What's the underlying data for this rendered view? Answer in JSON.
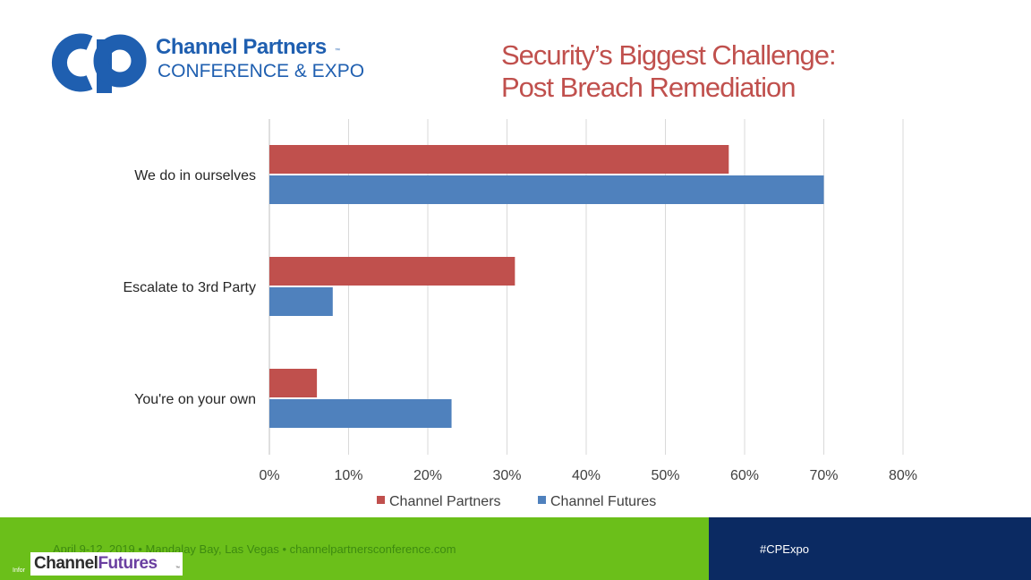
{
  "logo": {
    "line1": "Channel Partners",
    "trademark": "™",
    "line2": "CONFERENCE & EXPO"
  },
  "title": {
    "line1": "Security’s Biggest Challenge:",
    "line2": "Post Breach Remediation"
  },
  "chart_data": {
    "type": "bar",
    "orientation": "horizontal",
    "categories": [
      "We do in ourselves",
      "Escalate to 3rd Party",
      "You're on your own"
    ],
    "series": [
      {
        "name": "Channel Partners",
        "color": "#c0504d",
        "values": [
          58,
          31,
          6
        ]
      },
      {
        "name": "Channel Futures",
        "color": "#4f81bd",
        "values": [
          70,
          8,
          23
        ]
      }
    ],
    "xlim": [
      0,
      80
    ],
    "x_ticks": [
      0,
      10,
      20,
      30,
      40,
      50,
      60,
      70,
      80
    ],
    "tick_format": "{v}%",
    "grid": true,
    "legend_position": "bottom"
  },
  "footer": {
    "event_text": "April 9-12, 2019 • Mandalay Bay, Las Vegas • channelpartnersconference.com",
    "hashtag": "#CPExpo",
    "logo_text_a": "Channel",
    "logo_text_b": "Futures",
    "logo_trademark": "™",
    "informa_text": "Infor",
    "green_color": "#6bbf1a",
    "navy_color": "#0b2a62"
  }
}
